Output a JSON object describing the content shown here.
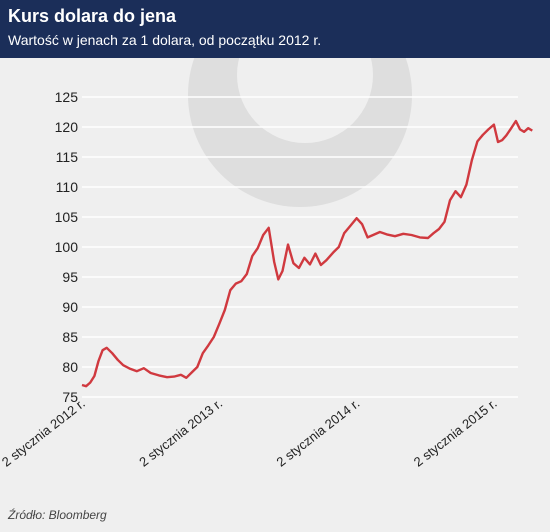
{
  "header": {
    "title": "Kurs dolara do jena",
    "subtitle": "Wartość w jenach za 1 dolara, od początku 2012 r."
  },
  "source": "Źródło: Bloomberg",
  "colors": {
    "header_bg": "#1b2e59",
    "line": "#d0393f",
    "plot_bg": "#efefef",
    "watermark": "#dedede"
  },
  "chart_data": {
    "type": "line",
    "title": "Kurs dolara do jena",
    "subtitle": "Wartość w jenach za 1 dolara, od początku 2012 r.",
    "xlabel": "",
    "ylabel": "",
    "ylim": [
      75,
      125
    ],
    "y_ticks": [
      75,
      80,
      85,
      90,
      95,
      100,
      105,
      110,
      115,
      120,
      125
    ],
    "x_ticks": [
      {
        "label": "2 stycznia 2012 r.",
        "year": 2012.0
      },
      {
        "label": "2 stycznia 2013 r.",
        "year": 2013.0
      },
      {
        "label": "2 stycznia 2014 r.",
        "year": 2014.0
      },
      {
        "label": "2 stycznia 2015 r.",
        "year": 2015.0
      }
    ],
    "xlim_years": [
      2012.0,
      2015.3
    ],
    "grid": "horizontal",
    "series": [
      {
        "values": [
          [
            2012.0,
            77.0
          ],
          [
            2012.03,
            76.8
          ],
          [
            2012.06,
            77.4
          ],
          [
            2012.09,
            78.5
          ],
          [
            2012.12,
            81.0
          ],
          [
            2012.15,
            82.8
          ],
          [
            2012.18,
            83.2
          ],
          [
            2012.22,
            82.3
          ],
          [
            2012.26,
            81.2
          ],
          [
            2012.3,
            80.3
          ],
          [
            2012.35,
            79.7
          ],
          [
            2012.4,
            79.3
          ],
          [
            2012.45,
            79.8
          ],
          [
            2012.5,
            79.0
          ],
          [
            2012.56,
            78.6
          ],
          [
            2012.62,
            78.3
          ],
          [
            2012.67,
            78.4
          ],
          [
            2012.72,
            78.7
          ],
          [
            2012.76,
            78.2
          ],
          [
            2012.8,
            79.1
          ],
          [
            2012.84,
            80.0
          ],
          [
            2012.88,
            82.3
          ],
          [
            2012.92,
            83.6
          ],
          [
            2012.96,
            85.0
          ],
          [
            2013.0,
            87.2
          ],
          [
            2013.04,
            89.5
          ],
          [
            2013.08,
            92.8
          ],
          [
            2013.12,
            93.9
          ],
          [
            2013.16,
            94.3
          ],
          [
            2013.2,
            95.5
          ],
          [
            2013.24,
            98.5
          ],
          [
            2013.28,
            99.8
          ],
          [
            2013.32,
            102.0
          ],
          [
            2013.36,
            103.2
          ],
          [
            2013.4,
            97.5
          ],
          [
            2013.43,
            94.6
          ],
          [
            2013.46,
            96.0
          ],
          [
            2013.5,
            100.4
          ],
          [
            2013.54,
            97.3
          ],
          [
            2013.58,
            96.5
          ],
          [
            2013.62,
            98.2
          ],
          [
            2013.66,
            97.1
          ],
          [
            2013.7,
            98.9
          ],
          [
            2013.74,
            97.0
          ],
          [
            2013.78,
            97.8
          ],
          [
            2013.83,
            99.1
          ],
          [
            2013.87,
            100.0
          ],
          [
            2013.91,
            102.3
          ],
          [
            2013.95,
            103.4
          ],
          [
            2014.0,
            104.8
          ],
          [
            2014.04,
            103.8
          ],
          [
            2014.08,
            101.6
          ],
          [
            2014.12,
            102.0
          ],
          [
            2014.17,
            102.5
          ],
          [
            2014.22,
            102.1
          ],
          [
            2014.28,
            101.8
          ],
          [
            2014.34,
            102.2
          ],
          [
            2014.4,
            102.0
          ],
          [
            2014.46,
            101.6
          ],
          [
            2014.52,
            101.5
          ],
          [
            2014.56,
            102.3
          ],
          [
            2014.6,
            103.0
          ],
          [
            2014.64,
            104.2
          ],
          [
            2014.68,
            107.8
          ],
          [
            2014.72,
            109.3
          ],
          [
            2014.76,
            108.3
          ],
          [
            2014.8,
            110.4
          ],
          [
            2014.84,
            114.5
          ],
          [
            2014.88,
            117.6
          ],
          [
            2014.92,
            118.7
          ],
          [
            2014.96,
            119.6
          ],
          [
            2015.0,
            120.4
          ],
          [
            2015.03,
            117.5
          ],
          [
            2015.06,
            117.8
          ],
          [
            2015.09,
            118.6
          ],
          [
            2015.12,
            119.6
          ],
          [
            2015.16,
            121.0
          ],
          [
            2015.19,
            119.6
          ],
          [
            2015.22,
            119.2
          ],
          [
            2015.25,
            119.8
          ],
          [
            2015.28,
            119.4
          ]
        ]
      }
    ]
  }
}
